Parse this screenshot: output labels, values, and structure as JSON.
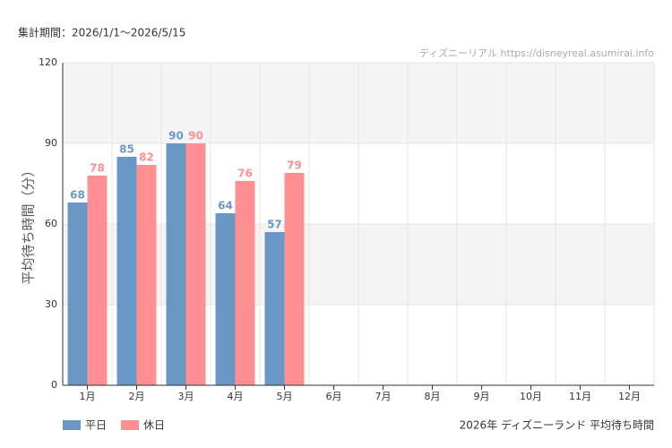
{
  "chart_data": {
    "type": "bar",
    "title": "2026年 ディズニーランド 平均待ち時間",
    "subtitle": "集計期間：2026/1/1〜2026/5/15",
    "source": "ディズニーリアル https://disneyreal.asumirai.info",
    "y_label": "平均待ち時間（分）",
    "categories": [
      "1月",
      "2月",
      "3月",
      "4月",
      "5月",
      "6月",
      "7月",
      "8月",
      "9月",
      "10月",
      "11月",
      "12月"
    ],
    "series": [
      {
        "name": "平日",
        "color": "#6a98c6",
        "values": [
          68,
          85,
          90,
          64,
          57,
          null,
          null,
          null,
          null,
          null,
          null,
          null
        ]
      },
      {
        "name": "休日",
        "color": "#ff8f92",
        "values": [
          78,
          82,
          90,
          76,
          79,
          null,
          null,
          null,
          null,
          null,
          null,
          null
        ]
      }
    ],
    "ylim": [
      0,
      120
    ],
    "yticks": [
      0,
      30,
      60,
      90,
      120
    ],
    "grid": true,
    "legend": "bottom-left"
  }
}
